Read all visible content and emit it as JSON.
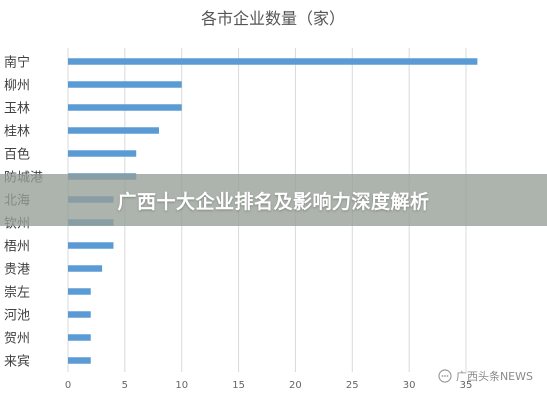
{
  "chart_data": {
    "type": "bar",
    "orientation": "horizontal",
    "title": "各市企业数量（家）",
    "categories": [
      "南宁",
      "柳州",
      "玉林",
      "桂林",
      "百色",
      "防城港",
      "北海",
      "钦州",
      "梧州",
      "贵港",
      "崇左",
      "河池",
      "贺州",
      "来宾"
    ],
    "values": [
      36,
      10,
      10,
      8,
      6,
      6,
      4,
      4,
      4,
      3,
      2,
      2,
      2,
      2
    ],
    "xlim": [
      0,
      35
    ],
    "xticks": [
      0,
      5,
      10,
      15,
      20,
      25,
      30,
      35
    ],
    "grid": true,
    "bar_color": "#5b9bd5"
  },
  "overlay": {
    "headline": "广西十大企业排名及影响力深度解析"
  },
  "watermark": {
    "text": "广西头条NEWS",
    "icon": "chat-bubble-icon"
  }
}
